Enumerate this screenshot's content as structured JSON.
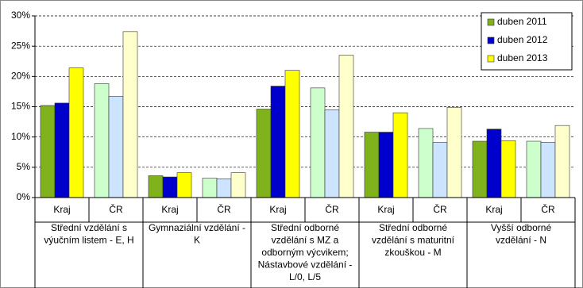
{
  "chart_data": {
    "type": "grouped-bar",
    "categories": [
      "Kraj",
      "ČR",
      "Kraj",
      "ČR",
      "Kraj",
      "ČR",
      "Kraj",
      "ČR",
      "Kraj",
      "ČR"
    ],
    "groups": [
      [
        "Střední vzdělání s",
        "výučním listem - E, H"
      ],
      [
        "Gymnaziální vzdělání -",
        "K"
      ],
      [
        "Střední odborné",
        "vzdělání s MZ a",
        "odborným výcvikem;",
        "Nástavbové vzdělání -",
        "L/0, L/5"
      ],
      [
        "Střední odborné",
        "vzdělání s maturitní",
        "zkouškou - M"
      ],
      [
        "Vyšší odborné",
        "vzdělání - N"
      ]
    ],
    "series": [
      {
        "name": "duben 2011",
        "color": "#7fb21b",
        "alt_color": "#ccffcc",
        "values": [
          15.2,
          18.8,
          3.6,
          3.2,
          14.6,
          18.1,
          10.8,
          11.4,
          9.3,
          9.3
        ]
      },
      {
        "name": "duben 2012",
        "color": "#0000cc",
        "alt_color": "#cce4ff",
        "values": [
          15.6,
          16.7,
          3.4,
          3.1,
          18.4,
          14.5,
          10.8,
          9.1,
          11.3,
          9.1
        ]
      },
      {
        "name": "duben 2013",
        "color": "#ffff00",
        "alt_color": "#ffffcc",
        "values": [
          21.4,
          27.4,
          4.1,
          4.1,
          21.0,
          23.5,
          14.0,
          14.9,
          9.4,
          11.9
        ]
      }
    ],
    "ylim": [
      0,
      30
    ],
    "yticks": [
      {
        "value": 0,
        "label": "0%"
      },
      {
        "value": 5,
        "label": "5%"
      },
      {
        "value": 10,
        "label": "10%"
      },
      {
        "value": 15,
        "label": "15%"
      },
      {
        "value": 20,
        "label": "20%"
      },
      {
        "value": 25,
        "label": "25%"
      },
      {
        "value": 30,
        "label": "30%"
      }
    ],
    "grid": true,
    "legend": "top-right"
  }
}
